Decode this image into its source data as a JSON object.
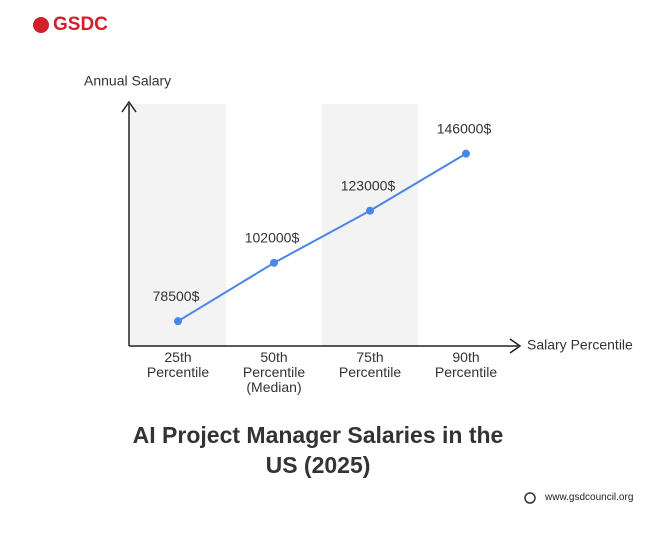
{
  "logo": "GSDC",
  "footer": "www.gsdcouncil.org",
  "chart_data": {
    "type": "line",
    "title": "AI Project Manager Salaries in the US (2025)",
    "y_label": "Annual Salary",
    "x_label": "Salary Percentile",
    "categories": [
      "25th Percentile",
      "50th Percentile (Median)",
      "75th Percentile",
      "90th Percentile"
    ],
    "values": [
      78500,
      102000,
      123000,
      146000
    ],
    "value_labels": [
      "78500$",
      "102000$",
      "123000$",
      "146000$"
    ],
    "color": "#4a86e8",
    "ylim": [
      68500,
      166000
    ],
    "band_shading": true
  }
}
